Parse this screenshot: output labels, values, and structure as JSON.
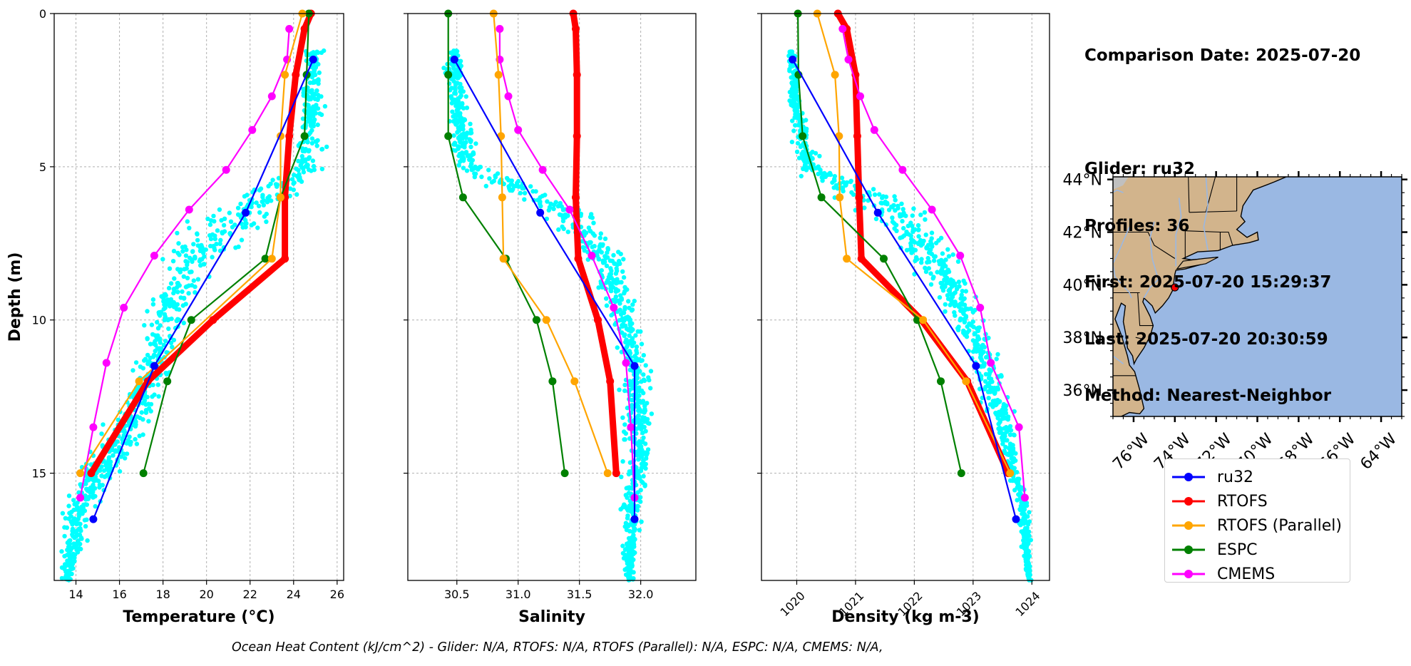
{
  "info": {
    "comparison_date": "Comparison Date: 2025-07-20",
    "glider": "Glider: ru32",
    "profiles": "Profiles: 36",
    "first": "First: 2025-07-20 15:29:37",
    "last": "Last: 2025-07-20 20:30:59",
    "method": "Method: Nearest-Neighbor"
  },
  "footer": "Ocean Heat Content (kJ/cm^2) - Glider: N/A,  RTOFS: N/A,  RTOFS (Parallel): N/A,  ESPC: N/A,  CMEMS: N/A,",
  "colors": {
    "ru32": "#0000ff",
    "RTOFS": "#ff0000",
    "RTOFS_Parallel": "#ffa500",
    "ESPC": "#008000",
    "CMEMS": "#ff00ff",
    "glider_points": "#00ffff",
    "land": "#d2b48c",
    "ocean": "#9ab8e3"
  },
  "legend": [
    {
      "label": "ru32",
      "color": "#0000ff"
    },
    {
      "label": "RTOFS",
      "color": "#ff0000"
    },
    {
      "label": "RTOFS (Parallel)",
      "color": "#ffa500"
    },
    {
      "label": "ESPC",
      "color": "#008000"
    },
    {
      "label": "CMEMS",
      "color": "#ff00ff"
    }
  ],
  "chart_data": [
    {
      "type": "line",
      "xlabel": "Temperature (°C)",
      "ylabel": "Depth (m)",
      "xlim": [
        13,
        26.3
      ],
      "ylim": [
        18.5,
        0
      ],
      "xticks": [
        14,
        16,
        18,
        20,
        22,
        24,
        26
      ],
      "yticks": [
        0,
        5,
        10,
        15
      ],
      "grid": true,
      "series": [
        {
          "name": "ru32",
          "x": [
            24.9,
            21.8,
            17.6,
            14.8
          ],
          "depth": [
            1.5,
            6.5,
            11.5,
            16.5
          ]
        },
        {
          "name": "RTOFS",
          "x": [
            24.8,
            24.5,
            24.1,
            23.8,
            23.6,
            23.6,
            20.3,
            17.3,
            14.7
          ],
          "depth": [
            0,
            0.5,
            2,
            4,
            6,
            8,
            10,
            12,
            15
          ]
        },
        {
          "name": "RTOFS (Parallel)",
          "x": [
            24.4,
            23.6,
            23.4,
            23.4,
            23.0,
            16.9,
            14.2
          ],
          "depth": [
            0,
            2,
            4,
            6,
            8,
            12,
            15
          ]
        },
        {
          "name": "ESPC",
          "x": [
            24.7,
            24.6,
            24.5,
            23.4,
            22.7,
            19.3,
            18.2,
            17.1
          ],
          "depth": [
            0,
            2,
            4,
            6,
            8,
            10,
            12,
            15
          ]
        },
        {
          "name": "CMEMS",
          "x": [
            23.8,
            23.7,
            23.0,
            22.1,
            20.9,
            19.2,
            17.6,
            16.2,
            15.4,
            14.8,
            14.2
          ],
          "depth": [
            0.5,
            1.5,
            2.7,
            3.8,
            5.1,
            6.4,
            7.9,
            9.6,
            11.4,
            13.5,
            15.8
          ]
        }
      ]
    },
    {
      "type": "line",
      "xlabel": "Salinity",
      "xlim": [
        30.1,
        32.45
      ],
      "ylim": [
        18.5,
        0
      ],
      "xticks": [
        30.5,
        31.0,
        31.5,
        32.0
      ],
      "yticks": [
        0,
        5,
        10,
        15
      ],
      "grid": true,
      "series": [
        {
          "name": "ru32",
          "x": [
            30.48,
            31.18,
            31.95,
            31.95
          ],
          "depth": [
            1.5,
            6.5,
            11.5,
            16.5
          ]
        },
        {
          "name": "RTOFS",
          "x": [
            31.45,
            31.47,
            31.48,
            31.48,
            31.47,
            31.49,
            31.65,
            31.75,
            31.8
          ],
          "depth": [
            0,
            0.5,
            2,
            4,
            6,
            8,
            10,
            12,
            15
          ]
        },
        {
          "name": "RTOFS (Parallel)",
          "x": [
            30.8,
            30.84,
            30.86,
            30.87,
            30.88,
            31.23,
            31.46,
            31.73
          ],
          "depth": [
            0,
            2,
            4,
            6,
            8,
            10,
            12,
            15
          ]
        },
        {
          "name": "ESPC",
          "x": [
            30.43,
            30.43,
            30.43,
            30.55,
            30.9,
            31.15,
            31.28,
            31.38
          ],
          "depth": [
            0,
            2,
            4,
            6,
            8,
            10,
            12,
            15
          ]
        },
        {
          "name": "CMEMS",
          "x": [
            30.85,
            30.85,
            30.92,
            31.0,
            31.2,
            31.42,
            31.6,
            31.78,
            31.88,
            31.92,
            31.95
          ],
          "depth": [
            0.5,
            1.5,
            2.7,
            3.8,
            5.1,
            6.4,
            7.9,
            9.6,
            11.4,
            13.5,
            15.8
          ]
        }
      ]
    },
    {
      "type": "line",
      "xlabel": "Density (kg m-3)",
      "xlim": [
        1019.4,
        1024.3
      ],
      "ylim": [
        18.5,
        0
      ],
      "xticks": [
        1020,
        1021,
        1022,
        1023,
        1024
      ],
      "yticks": [
        0,
        5,
        10,
        15
      ],
      "grid": true,
      "series": [
        {
          "name": "ru32",
          "x": [
            1019.93,
            1021.38,
            1023.05,
            1023.73
          ],
          "depth": [
            1.5,
            6.5,
            11.5,
            16.5
          ]
        },
        {
          "name": "RTOFS",
          "x": [
            1020.7,
            1020.85,
            1021.0,
            1021.03,
            1021.06,
            1021.1,
            1022.12,
            1022.9,
            1023.6
          ],
          "depth": [
            0,
            0.5,
            2,
            4,
            6,
            8,
            10,
            12,
            15
          ]
        },
        {
          "name": "RTOFS (Parallel)",
          "x": [
            1020.35,
            1020.65,
            1020.72,
            1020.73,
            1020.85,
            1022.15,
            1022.88,
            1023.63
          ],
          "depth": [
            0,
            2,
            4,
            6,
            8,
            10,
            12,
            15
          ]
        },
        {
          "name": "ESPC",
          "x": [
            1020.02,
            1020.03,
            1020.1,
            1020.42,
            1021.48,
            1022.05,
            1022.45,
            1022.8
          ],
          "depth": [
            0,
            2,
            4,
            6,
            8,
            10,
            12,
            15
          ]
        },
        {
          "name": "CMEMS",
          "x": [
            1020.78,
            1020.88,
            1021.08,
            1021.32,
            1021.8,
            1022.3,
            1022.78,
            1023.12,
            1023.3,
            1023.78,
            1023.88
          ],
          "depth": [
            0.5,
            1.5,
            2.7,
            3.8,
            5.1,
            6.4,
            7.9,
            9.6,
            11.4,
            13.5,
            15.8
          ]
        }
      ]
    },
    {
      "type": "map",
      "lat_ticks": [
        "44°N",
        "42°N",
        "40°N",
        "38°N",
        "36°N"
      ],
      "lon_ticks": [
        "76°W",
        "74°W",
        "72°W",
        "70°W",
        "68°W",
        "66°W",
        "64°W"
      ],
      "lat_range": [
        35,
        44.1
      ],
      "lon_range": [
        -77,
        -63
      ],
      "glider_location": {
        "lon": -74.0,
        "lat": 39.9
      }
    }
  ]
}
